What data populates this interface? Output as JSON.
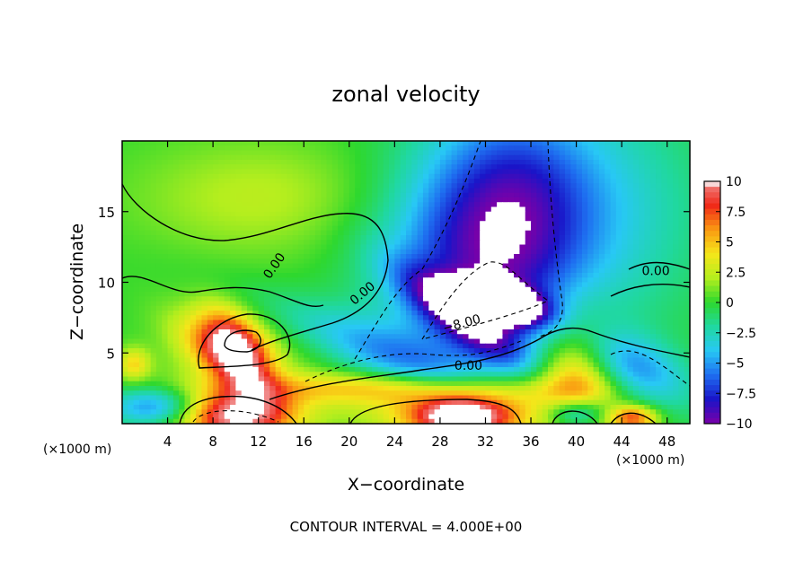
{
  "chart_data": {
    "type": "heatmap",
    "title": "zonal velocity",
    "xlabel": "X−coordinate",
    "ylabel": "Z−coordinate",
    "x_unit_left": "(×1000 m)",
    "x_unit_right": "(×1000 m)",
    "xlim": [
      0,
      50
    ],
    "ylim": [
      0,
      20
    ],
    "x_ticks": [
      4,
      8,
      12,
      16,
      20,
      24,
      28,
      32,
      36,
      40,
      44,
      48
    ],
    "y_ticks": [
      5,
      10,
      15
    ],
    "colorbar": {
      "range": [
        -10,
        10
      ],
      "ticks": [
        {
          "value": 10,
          "label": "10"
        },
        {
          "value": 7.5,
          "label": "7.5"
        },
        {
          "value": 5,
          "label": "5"
        },
        {
          "value": 2.5,
          "label": "2.5"
        },
        {
          "value": 0,
          "label": "0"
        },
        {
          "value": -2.5,
          "label": "−2.5"
        },
        {
          "value": -5,
          "label": "−5"
        },
        {
          "value": -7.5,
          "label": "−7.5"
        },
        {
          "value": -10,
          "label": "−10"
        }
      ],
      "colors": [
        "#7a00a8",
        "#1a14c8",
        "#1e6ef0",
        "#28c8f5",
        "#20d8a0",
        "#2ed82e",
        "#b4ee1e",
        "#f5e61a",
        "#fa9a12",
        "#f02818",
        "#f08c8c"
      ]
    },
    "contour_labels": [
      {
        "x": 13.7,
        "y": 11.0,
        "text": "0.00",
        "rotate": -55
      },
      {
        "x": 21.4,
        "y": 9.0,
        "text": "0.00",
        "rotate": -40
      },
      {
        "x": 30.0,
        "y": 6.8,
        "text": "−8.00",
        "rotate": -15
      },
      {
        "x": 30.5,
        "y": 3.8,
        "text": "0.00",
        "rotate": 0
      },
      {
        "x": 47.0,
        "y": 10.5,
        "text": "0.00",
        "rotate": 0
      }
    ],
    "footer": "CONTOUR INTERVAL = 4.000E+00",
    "blobs": [
      {
        "x": 10,
        "y": 4,
        "rx": 5,
        "ry": 3,
        "v": 2
      },
      {
        "x": 12,
        "y": 16,
        "rx": 8,
        "ry": 3,
        "v": 2.2
      },
      {
        "x": 10,
        "y": 5.6,
        "rx": 2.4,
        "ry": 1.4,
        "v": 9,
        "rot": -35
      },
      {
        "x": 9,
        "y": 4.4,
        "rx": 3.6,
        "ry": 1.2,
        "v": 4,
        "rot": -30
      },
      {
        "x": 31,
        "y": 1,
        "rx": 7,
        "ry": 1.6,
        "v": 6
      },
      {
        "x": 40,
        "y": 3.5,
        "rx": 2.5,
        "ry": 3,
        "v": 6
      },
      {
        "x": 10,
        "y": 0.5,
        "rx": 3.5,
        "ry": 1.2,
        "v": 10
      },
      {
        "x": 30,
        "y": 0.5,
        "rx": 3,
        "ry": 1,
        "v": 10
      },
      {
        "x": 45,
        "y": 0.4,
        "rx": 1.5,
        "ry": 0.6,
        "v": 7
      },
      {
        "x": 22,
        "y": 2.5,
        "rx": 10,
        "ry": 0.8,
        "v": 4
      },
      {
        "x": 31,
        "y": 11,
        "rx": 6,
        "ry": 6,
        "v": -7,
        "rot": -55
      },
      {
        "x": 33,
        "y": 8.6,
        "rx": 2.8,
        "ry": 0.9,
        "v": -14,
        "rot": -10
      },
      {
        "x": 30,
        "y": 7.5,
        "rx": 4.5,
        "ry": 1.2,
        "v": -6,
        "rot": -30
      },
      {
        "x": 35,
        "y": 16,
        "rx": 5,
        "ry": 5,
        "v": -5
      },
      {
        "x": 23,
        "y": 5,
        "rx": 8,
        "ry": 1.4,
        "v": -4,
        "rot": -18
      },
      {
        "x": 45,
        "y": 4,
        "rx": 4,
        "ry": 1.6,
        "v": -5,
        "rot": -20
      },
      {
        "x": 40,
        "y": 0.7,
        "rx": 2,
        "ry": 0.8,
        "v": -7
      },
      {
        "x": 3,
        "y": 1.2,
        "rx": 3,
        "ry": 1,
        "v": -6
      },
      {
        "x": 44,
        "y": 15,
        "rx": 6,
        "ry": 6,
        "v": -2.5
      },
      {
        "x": 1,
        "y": 4.2,
        "rx": 1,
        "ry": 0.8,
        "v": 4
      }
    ]
  }
}
